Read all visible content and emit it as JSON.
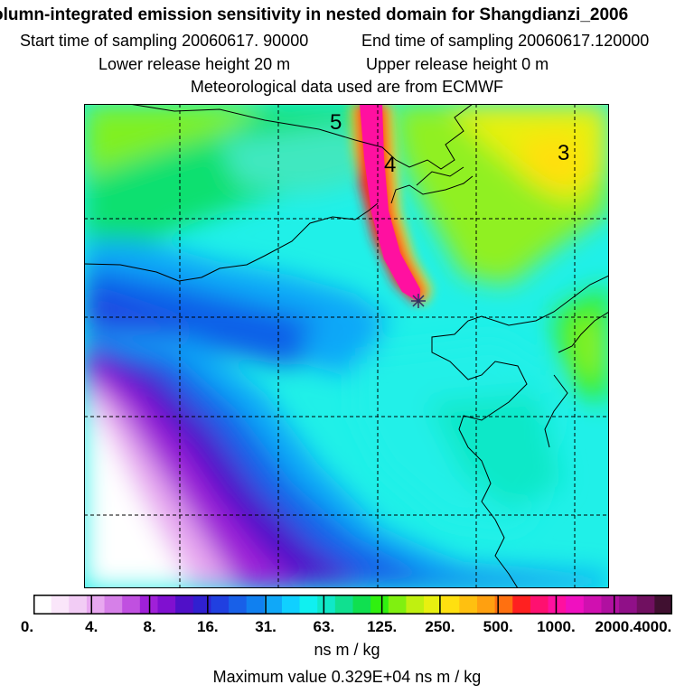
{
  "header": {
    "title": "olumn-integrated emission sensitivity in nested domain for Shangdianzi_2006",
    "start_sampling": "Start time of sampling 20060617. 90000",
    "end_sampling": "End time of sampling 20060617.120000",
    "lower_release": "Lower release height   20 m",
    "upper_release": "Upper release height    0 m",
    "met_data": "Meteorological data used are from ECMWF"
  },
  "map": {
    "contour_labels": [
      {
        "id": "5",
        "text": "5"
      },
      {
        "id": "4",
        "text": "4"
      },
      {
        "id": "3",
        "text": "3"
      }
    ],
    "receptor_marker": "star-marker"
  },
  "colorbar": {
    "colors": [
      "#ffffff",
      "#fae6fa",
      "#f2ccf5",
      "#e8a8f0",
      "#d680e8",
      "#c050e0",
      "#a020d8",
      "#8010d0",
      "#5010c8",
      "#3020d0",
      "#2040e0",
      "#1860e8",
      "#1080f0",
      "#10a8f8",
      "#10d0ff",
      "#10f0f0",
      "#10e8c8",
      "#10e090",
      "#10e050",
      "#30f010",
      "#80f010",
      "#c0f010",
      "#e8f010",
      "#ffe010",
      "#ffc010",
      "#ffa010",
      "#ff7010",
      "#ff2020",
      "#ff1070",
      "#ff10a0",
      "#f010c0",
      "#d010b0",
      "#b010a0",
      "#901088",
      "#701060",
      "#401030"
    ],
    "tick_labels": [
      "0.",
      "4.",
      "8.",
      "16.",
      "31.",
      "63.",
      "125.",
      "250.",
      "500.",
      "1000.",
      "2000.",
      "4000."
    ],
    "unit": "ns m / kg"
  },
  "footer": {
    "max_value": "Maximum value  0.329E+04 ns m / kg"
  }
}
